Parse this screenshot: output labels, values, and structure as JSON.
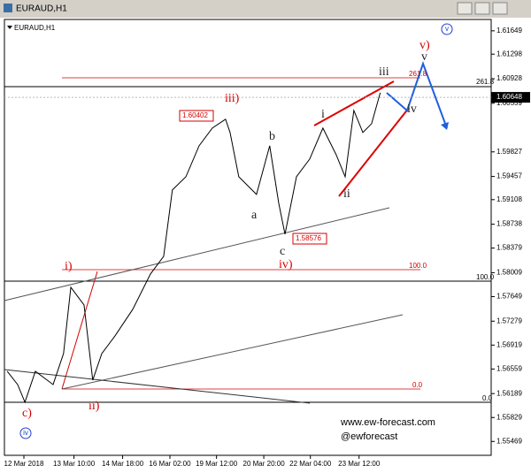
{
  "chart_data": {
    "type": "line",
    "title": "EURAUD,H1",
    "symbol_label": "EURAUD,H1",
    "x": [
      0.8,
      3.8,
      5.9,
      8.9,
      14.0,
      17.0,
      19.1,
      22.9,
      25.4,
      28.0,
      31.8,
      36.9,
      42.0,
      45.8,
      48.3,
      52.2,
      56.0,
      59.8,
      63.6,
      64.9,
      67.4,
      72.5,
      76.3,
      78.9,
      80.7,
      84.0,
      87.8,
      91.6,
      95.4,
      98.0,
      100.5,
      103.1,
      105.6,
      108.1
    ],
    "series": [
      {
        "name": "EURAUD",
        "color": "#000000",
        "values": [
          1.56525,
          1.56325,
          1.56059,
          1.56525,
          1.56325,
          1.56791,
          1.57789,
          1.57523,
          1.56392,
          1.56791,
          1.57057,
          1.57456,
          1.57989,
          1.58255,
          1.59253,
          1.59453,
          1.59919,
          1.60185,
          1.60318,
          1.60118,
          1.59453,
          1.59187,
          1.59919,
          1.59054,
          1.58588,
          1.59453,
          1.59719,
          1.60185,
          1.59786,
          1.59453,
          1.60451,
          1.60118,
          1.60251,
          1.60717
        ]
      }
    ],
    "current_price": 1.60648,
    "xlim": [
      0,
      140
    ],
    "xticks": [
      {
        "value": 5.6,
        "label": "12 Mar 2018"
      },
      {
        "value": 20,
        "label": "13 Mar 10:00"
      },
      {
        "value": 34,
        "label": "14 Mar 18:00"
      },
      {
        "value": 47.6,
        "label": "16 Mar 02:00"
      },
      {
        "value": 61,
        "label": "19 Mar 12:00"
      },
      {
        "value": 74.6,
        "label": "20 Mar 20:00"
      },
      {
        "value": 88,
        "label": "22 Mar 04:00"
      },
      {
        "value": 102,
        "label": "23 Mar 12:00"
      }
    ],
    "ylim": [
      1.5526,
      1.6182
    ],
    "yticks": [
      1.61649,
      1.61298,
      1.60928,
      1.60559,
      1.59827,
      1.59457,
      1.59108,
      1.58738,
      1.58379,
      1.58009,
      1.57649,
      1.57279,
      1.56919,
      1.56559,
      1.56189,
      1.55829,
      1.55469
    ],
    "annotations": [
      "iii)",
      "1.60402",
      "b",
      "i",
      "iii",
      "v",
      "v)",
      "v",
      "iv",
      "ii",
      "a",
      "c",
      "1.58576",
      "iv)",
      "i)",
      "ii)",
      "c)",
      "iv",
      "261.8",
      "261.8",
      "100.0",
      "100.0",
      "0.0",
      "0.0",
      "www.ew-forecast.com",
      "@ewforecast"
    ]
  }
}
